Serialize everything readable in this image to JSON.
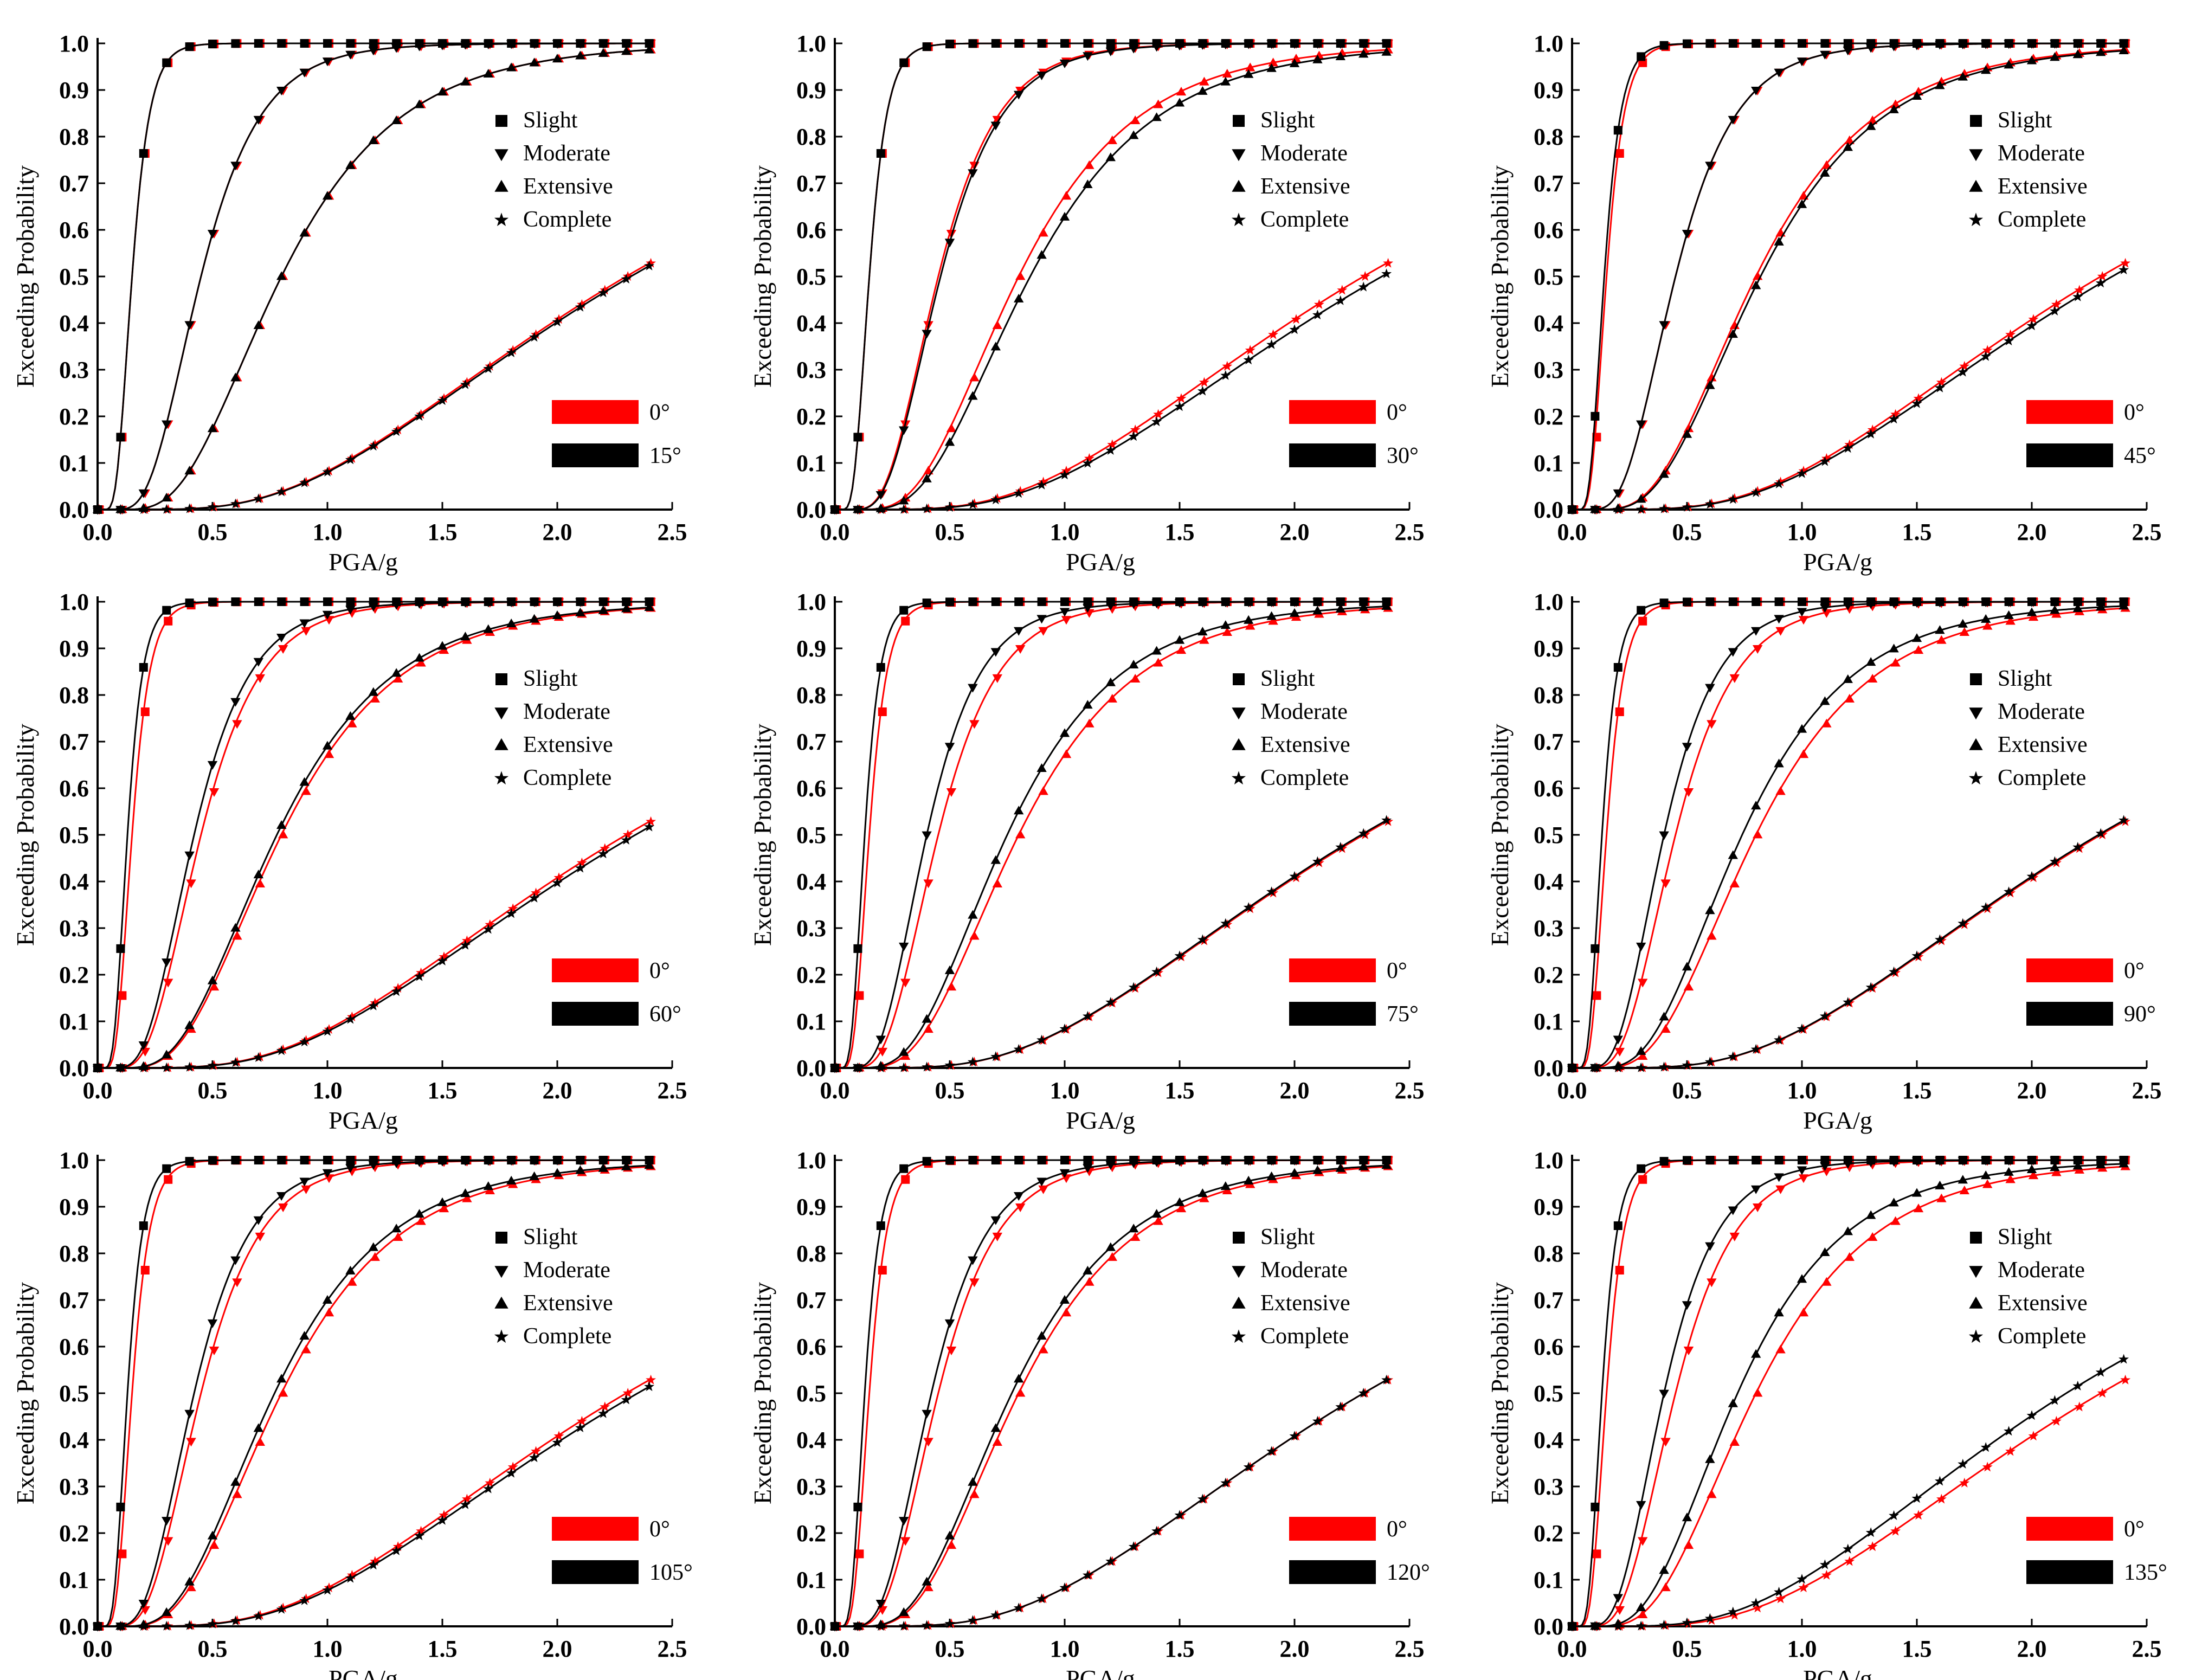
{
  "colors": {
    "baseline": "#ff0000",
    "comparison": "#000000",
    "axis": "#000000"
  },
  "chart_data": [
    {
      "type": "line",
      "panel": "0 vs 15",
      "xlabel": "PGA/g",
      "ylabel": "Exceeding Probability",
      "xlim": [
        0,
        2.5
      ],
      "ylim": [
        0,
        1.0
      ],
      "x_ticks": [
        "0.0",
        "0.5",
        "1.0",
        "1.5",
        "2.0",
        "2.5"
      ],
      "y_ticks": [
        "0.0",
        "0.1",
        "0.2",
        "0.3",
        "0.4",
        "0.5",
        "0.6",
        "0.7",
        "0.8",
        "0.9",
        "1.0"
      ],
      "legend_states": [
        "Slight",
        "Moderate",
        "Extensive",
        "Complete"
      ],
      "legend_angles": [
        "0°",
        "15°"
      ],
      "series": [
        {
          "name": "0°",
          "color": "#ff0000",
          "medians": [
            0.15,
            0.45,
            0.8,
            2.3
          ],
          "betas": [
            0.4,
            0.45,
            0.5,
            0.6
          ]
        },
        {
          "name": "15°",
          "color": "#000000",
          "medians": [
            0.15,
            0.45,
            0.8,
            2.32
          ],
          "betas": [
            0.4,
            0.45,
            0.5,
            0.6
          ]
        }
      ]
    },
    {
      "type": "line",
      "panel": "0 vs 30",
      "xlabel": "PGA/g",
      "ylabel": "Exceeding Probability",
      "xlim": [
        0,
        2.5
      ],
      "ylim": [
        0,
        1.0
      ],
      "x_ticks": [
        "0.0",
        "0.5",
        "1.0",
        "1.5",
        "2.0",
        "2.5"
      ],
      "y_ticks": [
        "0.0",
        "0.1",
        "0.2",
        "0.3",
        "0.4",
        "0.5",
        "0.6",
        "0.7",
        "0.8",
        "0.9",
        "1.0"
      ],
      "legend_states": [
        "Slight",
        "Moderate",
        "Extensive",
        "Complete"
      ],
      "legend_angles": [
        "0°",
        "30°"
      ],
      "series": [
        {
          "name": "0°",
          "color": "#ff0000",
          "medians": [
            0.15,
            0.45,
            0.8,
            2.3
          ],
          "betas": [
            0.4,
            0.45,
            0.5,
            0.6
          ]
        },
        {
          "name": "30°",
          "color": "#000000",
          "medians": [
            0.15,
            0.46,
            0.85,
            2.38
          ],
          "betas": [
            0.4,
            0.45,
            0.5,
            0.6
          ]
        }
      ]
    },
    {
      "type": "line",
      "panel": "0 vs 45",
      "xlabel": "PGA/g",
      "ylabel": "Exceeding Probability",
      "xlim": [
        0,
        2.5
      ],
      "ylim": [
        0,
        1.0
      ],
      "x_ticks": [
        "0.0",
        "0.5",
        "1.0",
        "1.5",
        "2.0",
        "2.5"
      ],
      "y_ticks": [
        "0.0",
        "0.1",
        "0.2",
        "0.3",
        "0.4",
        "0.5",
        "0.6",
        "0.7",
        "0.8",
        "0.9",
        "1.0"
      ],
      "legend_states": [
        "Slight",
        "Moderate",
        "Extensive",
        "Complete"
      ],
      "legend_angles": [
        "0°",
        "45°"
      ],
      "series": [
        {
          "name": "0°",
          "color": "#ff0000",
          "medians": [
            0.15,
            0.45,
            0.8,
            2.3
          ],
          "betas": [
            0.4,
            0.45,
            0.5,
            0.6
          ]
        },
        {
          "name": "45°",
          "color": "#000000",
          "medians": [
            0.14,
            0.45,
            0.82,
            2.35
          ],
          "betas": [
            0.4,
            0.45,
            0.5,
            0.6
          ]
        }
      ]
    },
    {
      "type": "line",
      "panel": "0 vs 60",
      "xlabel": "PGA/g",
      "ylabel": "Exceeding Probability",
      "xlim": [
        0,
        2.5
      ],
      "ylim": [
        0,
        1.0
      ],
      "x_ticks": [
        "0.0",
        "0.5",
        "1.0",
        "1.5",
        "2.0",
        "2.5"
      ],
      "y_ticks": [
        "0.0",
        "0.1",
        "0.2",
        "0.3",
        "0.4",
        "0.5",
        "0.6",
        "0.7",
        "0.8",
        "0.9",
        "1.0"
      ],
      "legend_states": [
        "Slight",
        "Moderate",
        "Extensive",
        "Complete"
      ],
      "legend_angles": [
        "0°",
        "60°"
      ],
      "series": [
        {
          "name": "0°",
          "color": "#ff0000",
          "medians": [
            0.15,
            0.45,
            0.8,
            2.3
          ],
          "betas": [
            0.4,
            0.45,
            0.5,
            0.6
          ]
        },
        {
          "name": "60°",
          "color": "#000000",
          "medians": [
            0.13,
            0.42,
            0.78,
            2.34
          ],
          "betas": [
            0.4,
            0.45,
            0.5,
            0.6
          ]
        }
      ]
    },
    {
      "type": "line",
      "panel": "0 vs 75",
      "xlabel": "PGA/g",
      "ylabel": "Exceeding Probability",
      "xlim": [
        0,
        2.5
      ],
      "ylim": [
        0,
        1.0
      ],
      "x_ticks": [
        "0.0",
        "0.5",
        "1.0",
        "1.5",
        "2.0",
        "2.5"
      ],
      "y_ticks": [
        "0.0",
        "0.1",
        "0.2",
        "0.3",
        "0.4",
        "0.5",
        "0.6",
        "0.7",
        "0.8",
        "0.9",
        "1.0"
      ],
      "legend_states": [
        "Slight",
        "Moderate",
        "Extensive",
        "Complete"
      ],
      "legend_angles": [
        "0°",
        "75°"
      ],
      "series": [
        {
          "name": "0°",
          "color": "#ff0000",
          "medians": [
            0.15,
            0.45,
            0.8,
            2.3
          ],
          "betas": [
            0.4,
            0.45,
            0.5,
            0.6
          ]
        },
        {
          "name": "75°",
          "color": "#000000",
          "medians": [
            0.13,
            0.4,
            0.75,
            2.29
          ],
          "betas": [
            0.4,
            0.45,
            0.5,
            0.6
          ]
        }
      ]
    },
    {
      "type": "line",
      "panel": "0 vs 90",
      "xlabel": "PGA/g",
      "ylabel": "Exceeding Probability",
      "xlim": [
        0,
        2.5
      ],
      "ylim": [
        0,
        1.0
      ],
      "x_ticks": [
        "0.0",
        "0.5",
        "1.0",
        "1.5",
        "2.0",
        "2.5"
      ],
      "y_ticks": [
        "0.0",
        "0.1",
        "0.2",
        "0.3",
        "0.4",
        "0.5",
        "0.6",
        "0.7",
        "0.8",
        "0.9",
        "1.0"
      ],
      "legend_states": [
        "Slight",
        "Moderate",
        "Extensive",
        "Complete"
      ],
      "legend_angles": [
        "0°",
        "90°"
      ],
      "series": [
        {
          "name": "0°",
          "color": "#ff0000",
          "medians": [
            0.15,
            0.45,
            0.8,
            2.3
          ],
          "betas": [
            0.4,
            0.45,
            0.5,
            0.6
          ]
        },
        {
          "name": "90°",
          "color": "#000000",
          "medians": [
            0.13,
            0.4,
            0.74,
            2.29
          ],
          "betas": [
            0.4,
            0.45,
            0.5,
            0.6
          ]
        }
      ]
    },
    {
      "type": "line",
      "panel": "0 vs 105",
      "xlabel": "PGA/g",
      "ylabel": "Exceeding Probability",
      "xlim": [
        0,
        2.5
      ],
      "ylim": [
        0,
        1.0
      ],
      "x_ticks": [
        "0.0",
        "0.5",
        "1.0",
        "1.5",
        "2.0",
        "2.5"
      ],
      "y_ticks": [
        "0.0",
        "0.1",
        "0.2",
        "0.3",
        "0.4",
        "0.5",
        "0.6",
        "0.7",
        "0.8",
        "0.9",
        "1.0"
      ],
      "legend_states": [
        "Slight",
        "Moderate",
        "Extensive",
        "Complete"
      ],
      "legend_angles": [
        "0°",
        "105°"
      ],
      "series": [
        {
          "name": "0°",
          "color": "#ff0000",
          "medians": [
            0.15,
            0.45,
            0.8,
            2.3
          ],
          "betas": [
            0.4,
            0.45,
            0.5,
            0.6
          ]
        },
        {
          "name": "105°",
          "color": "#000000",
          "medians": [
            0.13,
            0.42,
            0.77,
            2.35
          ],
          "betas": [
            0.4,
            0.45,
            0.5,
            0.6
          ]
        }
      ]
    },
    {
      "type": "line",
      "panel": "0 vs 120",
      "xlabel": "PGA/g",
      "ylabel": "Exceeding Probability",
      "xlim": [
        0,
        2.5
      ],
      "ylim": [
        0,
        1.0
      ],
      "x_ticks": [
        "0.0",
        "0.5",
        "1.0",
        "1.5",
        "2.0",
        "2.5"
      ],
      "y_ticks": [
        "0.0",
        "0.1",
        "0.2",
        "0.3",
        "0.4",
        "0.5",
        "0.6",
        "0.7",
        "0.8",
        "0.9",
        "1.0"
      ],
      "legend_states": [
        "Slight",
        "Moderate",
        "Extensive",
        "Complete"
      ],
      "legend_angles": [
        "0°",
        "120°"
      ],
      "series": [
        {
          "name": "0°",
          "color": "#ff0000",
          "medians": [
            0.15,
            0.45,
            0.8,
            2.3
          ],
          "betas": [
            0.4,
            0.45,
            0.5,
            0.6
          ]
        },
        {
          "name": "120°",
          "color": "#000000",
          "medians": [
            0.13,
            0.42,
            0.77,
            2.3
          ],
          "betas": [
            0.4,
            0.45,
            0.5,
            0.6
          ]
        }
      ]
    },
    {
      "type": "line",
      "panel": "0 vs 135",
      "xlabel": "PGA/g",
      "ylabel": "Exceeding Probability",
      "xlim": [
        0,
        2.5
      ],
      "ylim": [
        0,
        1.0
      ],
      "x_ticks": [
        "0.0",
        "0.5",
        "1.0",
        "1.5",
        "2.0",
        "2.5"
      ],
      "y_ticks": [
        "0.0",
        "0.1",
        "0.2",
        "0.3",
        "0.4",
        "0.5",
        "0.6",
        "0.7",
        "0.8",
        "0.9",
        "1.0"
      ],
      "legend_states": [
        "Slight",
        "Moderate",
        "Extensive",
        "Complete"
      ],
      "legend_angles": [
        "0°",
        "135°"
      ],
      "series": [
        {
          "name": "0°",
          "color": "#ff0000",
          "medians": [
            0.15,
            0.45,
            0.8,
            2.3
          ],
          "betas": [
            0.4,
            0.45,
            0.5,
            0.6
          ]
        },
        {
          "name": "135°",
          "color": "#000000",
          "medians": [
            0.13,
            0.4,
            0.72,
            2.15
          ],
          "betas": [
            0.4,
            0.45,
            0.5,
            0.6
          ]
        }
      ]
    }
  ]
}
